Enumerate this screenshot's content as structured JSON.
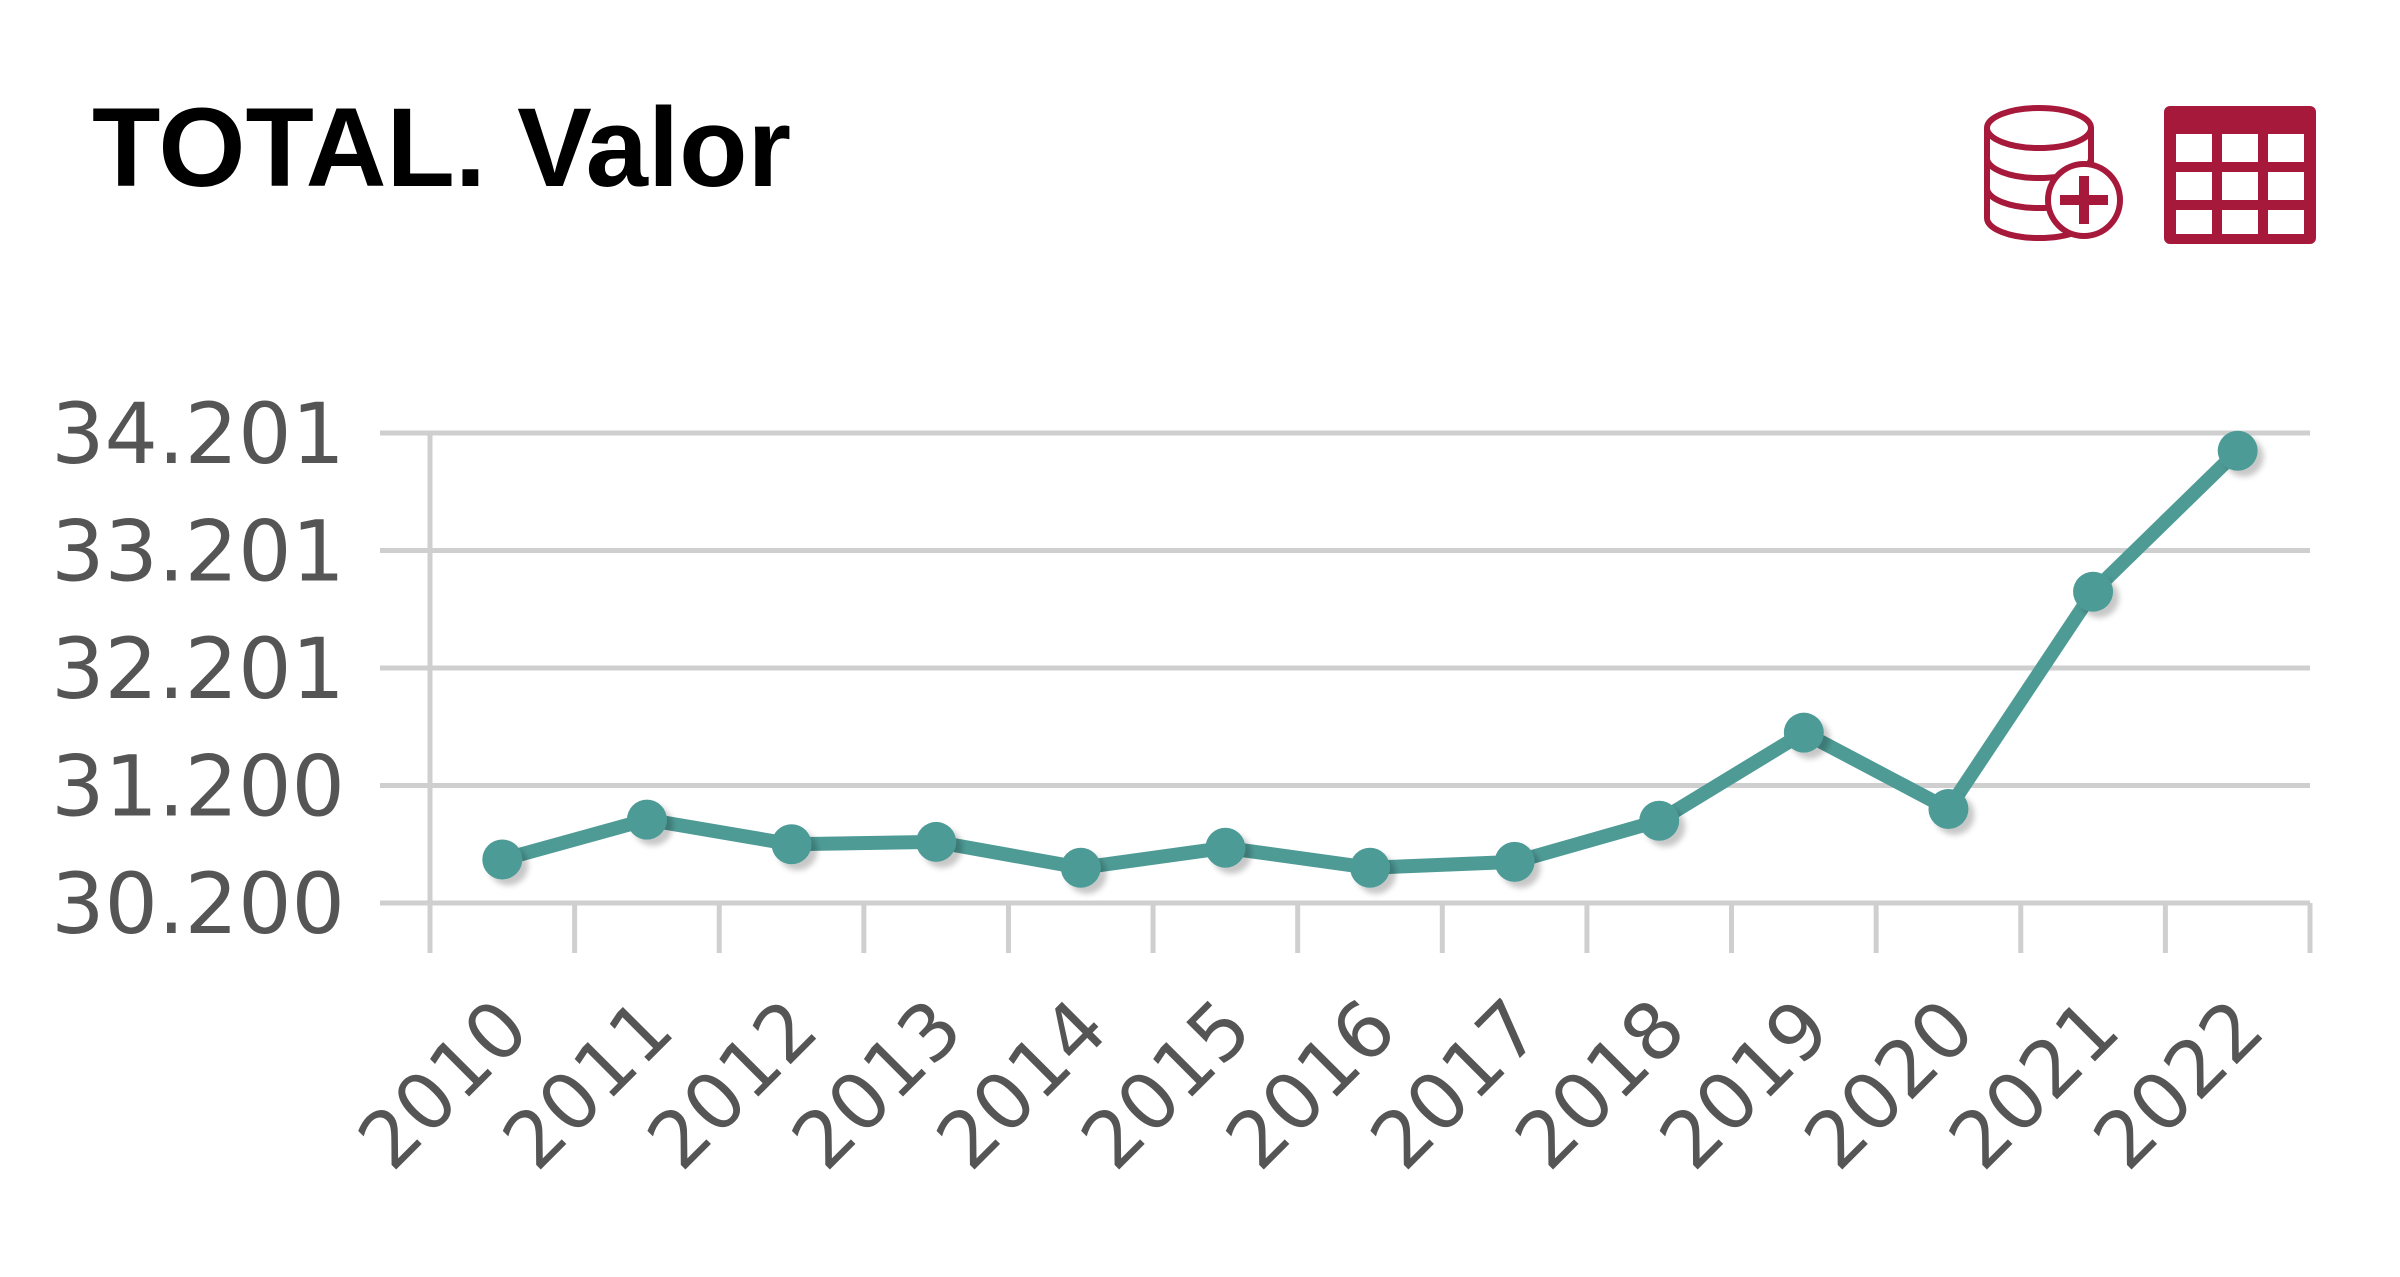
{
  "header": {
    "title": "TOTAL. Valor"
  },
  "toolbar": {
    "buttons": [
      {
        "name": "add-database-button",
        "icon": "database-plus-icon"
      },
      {
        "name": "table-view-button",
        "icon": "table-grid-icon"
      }
    ],
    "icon_color": "#a6193a"
  },
  "chart_data": {
    "type": "line",
    "title": "TOTAL. Valor",
    "xlabel": "",
    "ylabel": "",
    "categories": [
      "2010",
      "2011",
      "2012",
      "2013",
      "2014",
      "2015",
      "2016",
      "2017",
      "2018",
      "2019",
      "2020",
      "2021",
      "2022"
    ],
    "series": [
      {
        "color": "#4e9b96",
        "values": [
          30570,
          30910,
          30700,
          30720,
          30500,
          30670,
          30500,
          30550,
          30900,
          31650,
          31000,
          32850,
          34050
        ]
      }
    ],
    "y_ticks": [
      30200,
      31200,
      32201,
      33201,
      34201
    ],
    "y_tick_labels": [
      "30.200",
      "31.200",
      "32.201",
      "33.201",
      "34.201"
    ],
    "ylim": [
      30200,
      34201
    ],
    "grid": true,
    "legend": "none"
  }
}
